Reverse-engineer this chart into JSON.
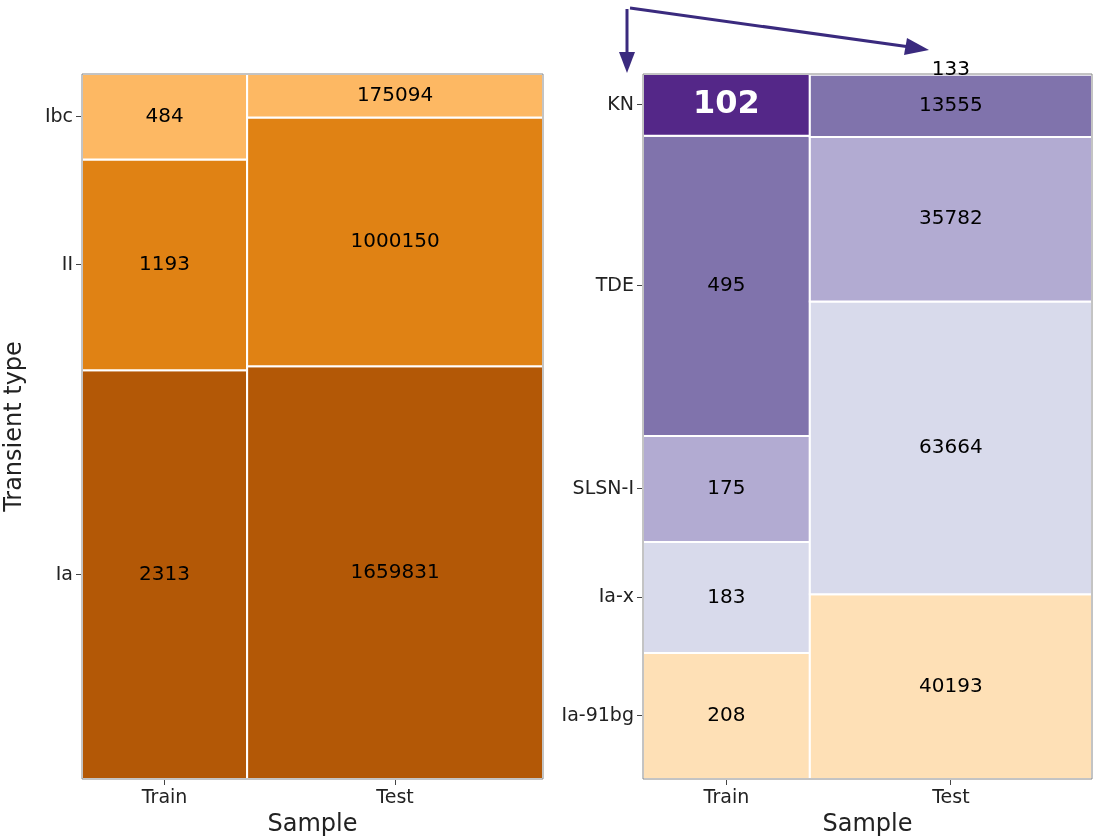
{
  "chart_data": [
    {
      "type": "other",
      "xlabel": "Sample",
      "ylabel": "Transient type",
      "categories": [
        "Train",
        "Test"
      ],
      "data_labels": true,
      "series": [
        {
          "name": "Ia",
          "color": "#b35806",
          "values": [
            2313,
            1659831
          ]
        },
        {
          "name": "II",
          "color": "#e08214",
          "values": [
            1193,
            1000150
          ]
        },
        {
          "name": "Ibc",
          "color": "#fdb863",
          "values": [
            484,
            175094
          ]
        }
      ]
    },
    {
      "type": "other",
      "xlabel": "Sample",
      "categories": [
        "Train",
        "Test"
      ],
      "data_labels": true,
      "series": [
        {
          "name": "Ia-91bg",
          "color": "#fee0b6",
          "values": [
            208,
            40193
          ]
        },
        {
          "name": "Ia-x",
          "color": "#d8daeb",
          "values": [
            183,
            63664
          ]
        },
        {
          "name": "SLSN-I",
          "color": "#b2abd2",
          "values": [
            175,
            35782
          ]
        },
        {
          "name": "TDE",
          "color": "#8073ac",
          "values": [
            495,
            13555
          ]
        },
        {
          "name": "KN",
          "color": "#542788",
          "values": [
            102,
            133
          ]
        }
      ]
    }
  ]
}
